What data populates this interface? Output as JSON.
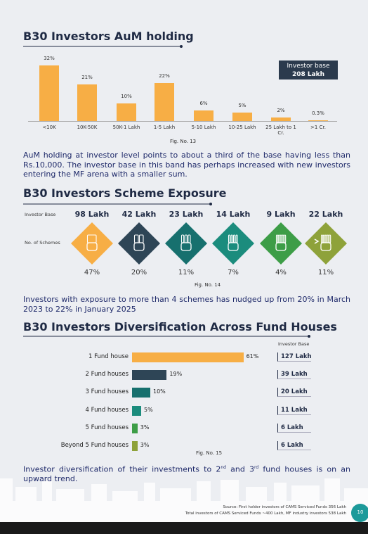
{
  "chart_data": [
    {
      "type": "bar",
      "title": "B30 Investors AuM holding",
      "categories": [
        "<10K",
        "10K-50K",
        "50K-1 Lakh",
        "1-5 Lakh",
        "5-10 Lakh",
        "10-25 Lakh",
        "25 Lakh to 1 Cr.",
        ">1 Cr."
      ],
      "values": [
        32,
        21,
        10,
        22,
        6,
        5,
        2,
        0.3
      ],
      "value_labels": [
        "32%",
        "21%",
        "10%",
        "22%",
        "6%",
        "5%",
        "2%",
        "0.3%"
      ],
      "color": "#f7ae45",
      "annotation": {
        "label": "Investor base",
        "value": "208 Lakh"
      },
      "caption": "Fig. No. 13"
    },
    {
      "type": "diamond",
      "title": "B30 Investors Scheme Exposure",
      "row_labels": [
        "Investor Base",
        "No. of Schemes"
      ],
      "investor_base": [
        "98 Lakh",
        "42 Lakh",
        "23 Lakh",
        "14 Lakh",
        "9 Lakh",
        "22 Lakh"
      ],
      "values": [
        47,
        20,
        11,
        7,
        4,
        11
      ],
      "value_labels": [
        "47%",
        "20%",
        "11%",
        "7%",
        "4%",
        "11%"
      ],
      "colors": [
        "#f7ae45",
        "#2e4556",
        "#17706e",
        "#1b8c7d",
        "#3d9d47",
        "#8ea23a"
      ],
      "caption": "Fig. No. 14"
    },
    {
      "type": "hbar",
      "title": "B30 Investors Diversification Across Fund Houses",
      "categories": [
        "1 Fund house",
        "2 Fund houses",
        "3 Fund houses",
        "4 Fund houses",
        "5 Fund houses",
        "Beyond 5 Fund houses"
      ],
      "values": [
        61,
        19,
        10,
        5,
        3,
        3
      ],
      "value_labels": [
        "61%",
        "19%",
        "10%",
        "5%",
        "3%",
        "3%"
      ],
      "colors": [
        "#f7ae45",
        "#2e4556",
        "#17706e",
        "#1b8c7d",
        "#3d9d47",
        "#8ea23a"
      ],
      "base_header": "Investor Base",
      "investor_base": [
        "127 Lakh",
        "39 Lakh",
        "20 Lakh",
        "11 Lakh",
        "6 Lakh",
        "6 Lakh"
      ],
      "caption": "Fig. No. 15"
    }
  ],
  "paragraphs": [
    [
      "AuM holding at investor level points to about a third of the base having less than Rs.10,000. The investor base in this band has perhaps increased with new investors entering the MF arena with a smaller sum."
    ],
    [
      "Investors with exposure to more than 4 schemes has nudged up from 20% in March 2023 to 22% in January 2025"
    ],
    [
      "Investor diversification of their investments to 2",
      "nd",
      " and 3",
      "rd",
      " fund houses is on an upward trend."
    ]
  ],
  "footer": {
    "sources": [
      "Source: First holder investors of CAMS Serviced Funds 356 Lakh",
      "Total investors of CAMS Serviced Funds ~400 Lakh, MF industry investors 538 Lakh"
    ],
    "page": "10"
  }
}
